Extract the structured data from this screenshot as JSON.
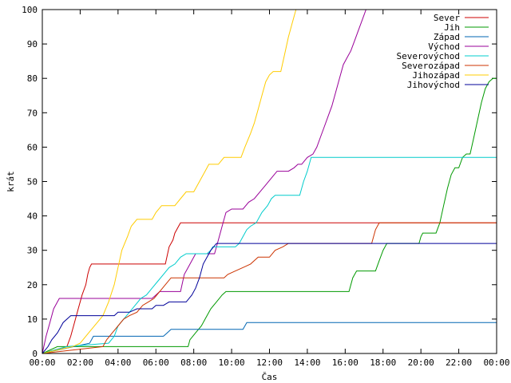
{
  "chart_data": {
    "type": "line",
    "title": "",
    "xlabel": "Čas",
    "ylabel": "krát",
    "xlim": [
      0,
      24
    ],
    "ylim": [
      0,
      100
    ],
    "grid": false,
    "legend_position": "top-right",
    "x_ticks": [
      {
        "value": 0,
        "label": "00:00"
      },
      {
        "value": 2,
        "label": "02:00"
      },
      {
        "value": 4,
        "label": "04:00"
      },
      {
        "value": 6,
        "label": "06:00"
      },
      {
        "value": 8,
        "label": "08:00"
      },
      {
        "value": 10,
        "label": "10:00"
      },
      {
        "value": 12,
        "label": "12:00"
      },
      {
        "value": 14,
        "label": "14:00"
      },
      {
        "value": 16,
        "label": "16:00"
      },
      {
        "value": 18,
        "label": "18:00"
      },
      {
        "value": 20,
        "label": "20:00"
      },
      {
        "value": 22,
        "label": "22:00"
      },
      {
        "value": 24,
        "label": "00:00"
      }
    ],
    "y_ticks": [
      0,
      10,
      20,
      30,
      40,
      50,
      60,
      70,
      80,
      90,
      100
    ],
    "series": [
      {
        "name": "Sever",
        "color": "#cc0000",
        "points": [
          [
            0,
            0
          ],
          [
            1.3,
            2
          ],
          [
            1.5,
            5
          ],
          [
            1.7,
            9
          ],
          [
            1.9,
            13
          ],
          [
            2.1,
            17
          ],
          [
            2.3,
            20
          ],
          [
            2.4,
            23
          ],
          [
            2.5,
            25
          ],
          [
            2.6,
            26
          ],
          [
            6.5,
            26
          ],
          [
            6.7,
            31
          ],
          [
            6.9,
            33
          ],
          [
            7.0,
            35
          ],
          [
            7.2,
            37
          ],
          [
            7.3,
            38
          ],
          [
            24,
            38
          ]
        ]
      },
      {
        "name": "Jih",
        "color": "#009900",
        "points": [
          [
            0,
            0
          ],
          [
            0.8,
            2
          ],
          [
            7.7,
            2
          ],
          [
            7.8,
            4
          ],
          [
            8.1,
            6
          ],
          [
            8.4,
            8
          ],
          [
            8.6,
            10
          ],
          [
            8.9,
            13
          ],
          [
            9.2,
            15
          ],
          [
            9.5,
            17
          ],
          [
            9.7,
            18
          ],
          [
            16.2,
            18
          ],
          [
            16.4,
            22
          ],
          [
            16.6,
            24
          ],
          [
            17.6,
            24
          ],
          [
            17.8,
            27
          ],
          [
            18,
            30
          ],
          [
            18.2,
            32
          ],
          [
            19.9,
            32
          ],
          [
            20.0,
            34
          ],
          [
            20.1,
            35
          ],
          [
            20.8,
            35
          ],
          [
            21.0,
            38
          ],
          [
            21.2,
            43
          ],
          [
            21.4,
            48
          ],
          [
            21.6,
            52
          ],
          [
            21.8,
            54
          ],
          [
            22.0,
            54
          ],
          [
            22.2,
            57
          ],
          [
            22.4,
            58
          ],
          [
            22.6,
            58
          ],
          [
            22.8,
            63
          ],
          [
            23.0,
            68
          ],
          [
            23.2,
            73
          ],
          [
            23.4,
            77
          ],
          [
            23.6,
            79
          ],
          [
            23.8,
            80
          ],
          [
            24,
            80
          ]
        ]
      },
      {
        "name": "Západ",
        "color": "#0066b3",
        "points": [
          [
            0,
            0
          ],
          [
            2.5,
            3
          ],
          [
            2.7,
            5
          ],
          [
            6.4,
            5
          ],
          [
            6.6,
            6
          ],
          [
            6.8,
            7
          ],
          [
            10.6,
            7
          ],
          [
            10.8,
            9
          ],
          [
            24,
            9
          ]
        ]
      },
      {
        "name": "Východ",
        "color": "#990099",
        "points": [
          [
            0,
            0
          ],
          [
            0.2,
            5
          ],
          [
            0.4,
            9
          ],
          [
            0.6,
            13
          ],
          [
            0.9,
            16
          ],
          [
            5.8,
            16
          ],
          [
            6.0,
            17
          ],
          [
            6.2,
            18
          ],
          [
            7.3,
            18
          ],
          [
            7.5,
            23
          ],
          [
            7.7,
            25
          ],
          [
            7.9,
            27
          ],
          [
            8.1,
            29
          ],
          [
            9.1,
            29
          ],
          [
            9.3,
            33
          ],
          [
            9.5,
            37
          ],
          [
            9.7,
            41
          ],
          [
            10.0,
            42
          ],
          [
            10.6,
            42
          ],
          [
            10.9,
            44
          ],
          [
            11.2,
            45
          ],
          [
            11.5,
            47
          ],
          [
            11.8,
            49
          ],
          [
            12.1,
            51
          ],
          [
            12.4,
            53
          ],
          [
            13.0,
            53
          ],
          [
            13.3,
            54
          ],
          [
            13.5,
            55
          ],
          [
            13.7,
            55
          ],
          [
            14.0,
            57
          ],
          [
            14.3,
            58
          ],
          [
            14.5,
            60
          ],
          [
            14.7,
            63
          ],
          [
            14.9,
            66
          ],
          [
            15.1,
            69
          ],
          [
            15.3,
            72
          ],
          [
            15.5,
            76
          ],
          [
            15.7,
            80
          ],
          [
            15.9,
            84
          ],
          [
            16.1,
            86
          ],
          [
            16.3,
            88
          ],
          [
            16.5,
            91
          ],
          [
            16.7,
            94
          ],
          [
            16.9,
            97
          ],
          [
            17.1,
            100
          ]
        ]
      },
      {
        "name": "Severovýchod",
        "color": "#00cccc",
        "points": [
          [
            0,
            0
          ],
          [
            1.3,
            2
          ],
          [
            3.5,
            3
          ],
          [
            3.8,
            5
          ],
          [
            4.0,
            8
          ],
          [
            4.3,
            10
          ],
          [
            4.6,
            12
          ],
          [
            4.9,
            14
          ],
          [
            5.2,
            16
          ],
          [
            5.5,
            17
          ],
          [
            5.8,
            19
          ],
          [
            6.1,
            21
          ],
          [
            6.4,
            23
          ],
          [
            6.7,
            25
          ],
          [
            7.0,
            26
          ],
          [
            7.3,
            28
          ],
          [
            7.6,
            29
          ],
          [
            8.7,
            29
          ],
          [
            8.9,
            30
          ],
          [
            9.0,
            31
          ],
          [
            10.2,
            31
          ],
          [
            10.4,
            32
          ],
          [
            10.6,
            34
          ],
          [
            10.8,
            36
          ],
          [
            11.0,
            37
          ],
          [
            11.3,
            38
          ],
          [
            11.6,
            41
          ],
          [
            11.9,
            43
          ],
          [
            12.1,
            45
          ],
          [
            12.3,
            46
          ],
          [
            13.6,
            46
          ],
          [
            13.8,
            50
          ],
          [
            14.0,
            53
          ],
          [
            14.2,
            57
          ],
          [
            24,
            57
          ]
        ]
      },
      {
        "name": "Severozápad",
        "color": "#cc3300",
        "points": [
          [
            0,
            0
          ],
          [
            3.2,
            2
          ],
          [
            3.4,
            4
          ],
          [
            3.7,
            6
          ],
          [
            4.0,
            8
          ],
          [
            4.3,
            10
          ],
          [
            4.6,
            11
          ],
          [
            5.0,
            12
          ],
          [
            5.3,
            14
          ],
          [
            5.6,
            15
          ],
          [
            5.9,
            16
          ],
          [
            6.2,
            18
          ],
          [
            6.5,
            20
          ],
          [
            6.8,
            22
          ],
          [
            9.6,
            22
          ],
          [
            9.8,
            23
          ],
          [
            10.2,
            24
          ],
          [
            10.6,
            25
          ],
          [
            11.0,
            26
          ],
          [
            11.4,
            28
          ],
          [
            12.0,
            28
          ],
          [
            12.3,
            30
          ],
          [
            12.7,
            31
          ],
          [
            13.0,
            32
          ],
          [
            17.4,
            32
          ],
          [
            17.6,
            36
          ],
          [
            17.8,
            38
          ],
          [
            24,
            38
          ]
        ]
      },
      {
        "name": "Jihozápad",
        "color": "#ffcc00",
        "points": [
          [
            0,
            0
          ],
          [
            1.6,
            2
          ],
          [
            2.0,
            3
          ],
          [
            2.3,
            5
          ],
          [
            2.6,
            7
          ],
          [
            2.9,
            9
          ],
          [
            3.2,
            11
          ],
          [
            3.5,
            15
          ],
          [
            3.8,
            20
          ],
          [
            4.0,
            25
          ],
          [
            4.2,
            30
          ],
          [
            4.5,
            34
          ],
          [
            4.7,
            37
          ],
          [
            5.0,
            39
          ],
          [
            5.8,
            39
          ],
          [
            6.0,
            41
          ],
          [
            6.3,
            43
          ],
          [
            7.0,
            43
          ],
          [
            7.3,
            45
          ],
          [
            7.6,
            47
          ],
          [
            8.0,
            47
          ],
          [
            8.3,
            50
          ],
          [
            8.6,
            53
          ],
          [
            8.8,
            55
          ],
          [
            9.3,
            55
          ],
          [
            9.6,
            57
          ],
          [
            10.5,
            57
          ],
          [
            10.7,
            60
          ],
          [
            11.0,
            64
          ],
          [
            11.2,
            67
          ],
          [
            11.4,
            71
          ],
          [
            11.6,
            75
          ],
          [
            11.8,
            79
          ],
          [
            12.0,
            81
          ],
          [
            12.2,
            82
          ],
          [
            12.6,
            82
          ],
          [
            12.8,
            87
          ],
          [
            13.0,
            92
          ],
          [
            13.2,
            96
          ],
          [
            13.4,
            100
          ]
        ]
      },
      {
        "name": "Jihovýchod",
        "color": "#000099",
        "points": [
          [
            0,
            0
          ],
          [
            0.3,
            2
          ],
          [
            0.5,
            4
          ],
          [
            0.8,
            6
          ],
          [
            1.1,
            9
          ],
          [
            1.5,
            11
          ],
          [
            3.8,
            11
          ],
          [
            4.0,
            12
          ],
          [
            4.6,
            12
          ],
          [
            5.0,
            13
          ],
          [
            5.8,
            13
          ],
          [
            6.0,
            14
          ],
          [
            6.4,
            14
          ],
          [
            6.7,
            15
          ],
          [
            7.6,
            15
          ],
          [
            7.9,
            17
          ],
          [
            8.1,
            19
          ],
          [
            8.3,
            22
          ],
          [
            8.5,
            26
          ],
          [
            8.7,
            28
          ],
          [
            8.9,
            30
          ],
          [
            9.2,
            32
          ],
          [
            24,
            32
          ]
        ]
      }
    ]
  }
}
